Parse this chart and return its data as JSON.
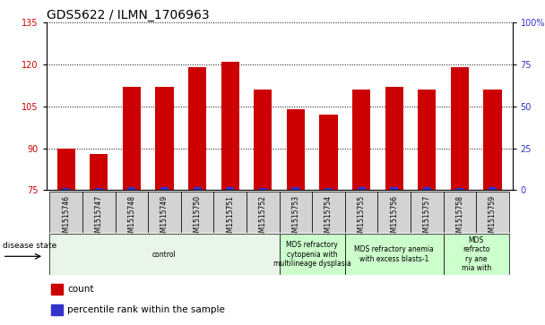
{
  "title": "GDS5622 / ILMN_1706963",
  "samples": [
    "GSM1515746",
    "GSM1515747",
    "GSM1515748",
    "GSM1515749",
    "GSM1515750",
    "GSM1515751",
    "GSM1515752",
    "GSM1515753",
    "GSM1515754",
    "GSM1515755",
    "GSM1515756",
    "GSM1515757",
    "GSM1515758",
    "GSM1515759"
  ],
  "counts": [
    90,
    88,
    112,
    112,
    119,
    121,
    111,
    104,
    102,
    111,
    112,
    111,
    119,
    111
  ],
  "percentile_ranks": [
    1,
    1,
    2,
    2,
    2,
    2,
    1,
    2,
    1,
    2,
    2,
    2,
    1,
    2
  ],
  "ylim_left": [
    75,
    135
  ],
  "ylim_right": [
    0,
    100
  ],
  "yticks_left": [
    75,
    90,
    105,
    120,
    135
  ],
  "yticks_right": [
    0,
    25,
    50,
    75,
    100
  ],
  "bar_color_count": "#cc0000",
  "bar_color_percentile": "#3333cc",
  "bar_width": 0.55,
  "pct_bar_width": 0.25,
  "groups": [
    {
      "label": "control",
      "start": 0,
      "end": 6,
      "color": "#e8f5e8"
    },
    {
      "label": "MDS refractory\ncytopenia with\nmultilineage dysplasia",
      "start": 7,
      "end": 8,
      "color": "#ccffcc"
    },
    {
      "label": "MDS refractory anemia\nwith excess blasts-1",
      "start": 9,
      "end": 11,
      "color": "#ccffcc"
    },
    {
      "label": "MDS\nrefracto\nry ane\nmia with",
      "start": 12,
      "end": 13,
      "color": "#ccffcc"
    }
  ],
  "disease_state_label": "disease state",
  "legend_items": [
    {
      "label": "count",
      "color": "#cc0000"
    },
    {
      "label": "percentile rank within the sample",
      "color": "#3333cc"
    }
  ],
  "background_color": "#ffffff",
  "plot_bg_color": "#ffffff",
  "xtick_bg_color": "#d3d3d3",
  "grid_color": "#000000",
  "title_fontsize": 10,
  "tick_fontsize": 7,
  "label_fontsize": 7.5
}
